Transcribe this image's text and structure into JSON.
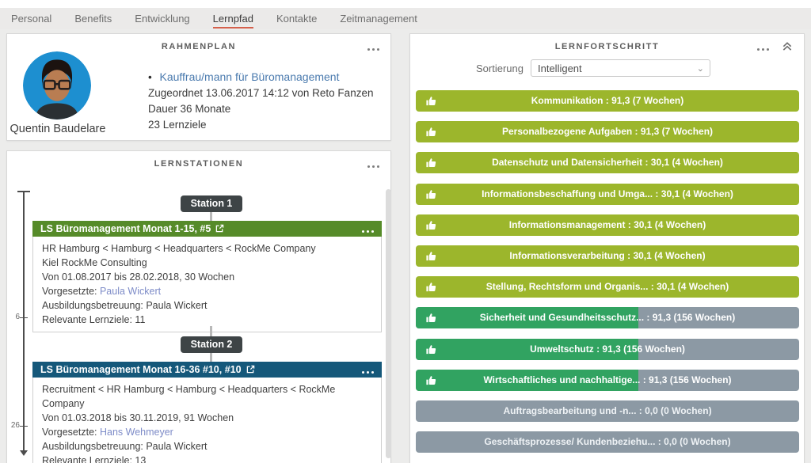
{
  "tabs": [
    {
      "label": "Personal",
      "active": false
    },
    {
      "label": "Benefits",
      "active": false
    },
    {
      "label": "Entwicklung",
      "active": false
    },
    {
      "label": "Lernpfad",
      "active": true
    },
    {
      "label": "Kontakte",
      "active": false
    },
    {
      "label": "Zeitmanagement",
      "active": false
    }
  ],
  "rahmenplan": {
    "title": "RAHMENPLAN",
    "person_name": "Quentin Baudelare",
    "bullet": "•",
    "plan_link": "Kauffrau/mann für Büromanagement",
    "assigned": "Zugeordnet 13.06.2017 14:12 von Reto Fanzen",
    "duration": "Dauer 36 Monate",
    "goals": "23 Lernziele"
  },
  "lernstationen": {
    "title": "LERNSTATIONEN",
    "axis_ticks": [
      "6",
      "26"
    ],
    "stations": [
      {
        "badge": "Station 1",
        "variant": "green",
        "title": "LS Büromanagement Monat 1-15, #5",
        "rows": [
          {
            "text": "HR Hamburg < Hamburg < Headquarters < RockMe Company"
          },
          {
            "text": "Kiel RockMe Consulting"
          },
          {
            "text": "Von 01.08.2017 bis 28.02.2018, 30 Wochen"
          },
          {
            "label": "Vorgesetzte: ",
            "link": "Paula Wickert"
          },
          {
            "text": "Ausbildungsbetreuung: Paula Wickert"
          },
          {
            "text": "Relevante Lernziele: 11"
          }
        ]
      },
      {
        "badge": "Station 2",
        "variant": "teal",
        "title": "LS Büromanagement Monat 16-36 #10, #10",
        "rows": [
          {
            "text": "Recruitment < HR Hamburg < Hamburg < Headquarters < RockMe Company"
          },
          {
            "text": "Von 01.03.2018 bis 30.11.2019, 91 Wochen"
          },
          {
            "label": "Vorgesetzte: ",
            "link": "Hans Wehmeyer"
          },
          {
            "text": "Ausbildungsbetreuung: Paula Wickert"
          },
          {
            "text": "Relevante Lernziele: 13"
          }
        ]
      }
    ]
  },
  "lernfortschritt": {
    "title": "LERNFORTSCHRITT",
    "sort_label": "Sortierung",
    "sort_value": "Intelligent",
    "bars": [
      {
        "text": "Kommunikation : 91,3 (7 Wochen)",
        "fill_pct": 100,
        "variant": "lime",
        "thumb": true
      },
      {
        "text": "Personalbezogene Aufgaben : 91,3 (7 Wochen)",
        "fill_pct": 100,
        "variant": "lime",
        "thumb": true
      },
      {
        "text": "Datenschutz und Datensicherheit : 30,1 (4 Wochen)",
        "fill_pct": 100,
        "variant": "lime",
        "thumb": true
      },
      {
        "text": "Informationsbeschaffung und Umga... : 30,1 (4 Wochen)",
        "fill_pct": 100,
        "variant": "lime",
        "thumb": true
      },
      {
        "text": "Informationsmanagement : 30,1 (4 Wochen)",
        "fill_pct": 100,
        "variant": "lime",
        "thumb": true
      },
      {
        "text": "Informationsverarbeitung : 30,1 (4 Wochen)",
        "fill_pct": 100,
        "variant": "lime",
        "thumb": true
      },
      {
        "text": "Stellung, Rechtsform und Organis... : 30,1 (4 Wochen)",
        "fill_pct": 100,
        "variant": "lime",
        "thumb": true
      },
      {
        "text": "Sicherheit und Gesundheitsschutz... : 91,3 (156 Wochen)",
        "fill_pct": 58,
        "variant": "split",
        "thumb": true
      },
      {
        "text": "Umweltschutz : 91,3 (156 Wochen)",
        "fill_pct": 58,
        "variant": "split",
        "thumb": true
      },
      {
        "text": "Wirtschaftliches und nachhaltige... : 91,3 (156 Wochen)",
        "fill_pct": 58,
        "variant": "split",
        "thumb": true
      },
      {
        "text": "Auftragsbearbeitung und -n... : 0,0 (0 Wochen)",
        "fill_pct": 0,
        "variant": "empty",
        "thumb": false
      },
      {
        "text": "Geschäftsprozesse/ Kundenbeziehu... : 0,0 (0 Wochen)",
        "fill_pct": 0,
        "variant": "empty",
        "thumb": false
      }
    ]
  },
  "colors": {
    "tab_underline": "#d5604b",
    "bar_lime": "#9cb62c",
    "bar_green": "#31a361",
    "bar_gray": "#8c99a4",
    "station_green": "#568b29",
    "station_teal": "#15587a",
    "badge_dark": "#3e4446",
    "link_blue": "#4a7aae",
    "link_periwinkle": "#7e8cc8"
  },
  "icons": {
    "overflow": "ellipsis-icon",
    "collapse": "chevron-double-up-icon",
    "external": "external-link-icon",
    "thumb": "thumbs-up-icon",
    "select": "chevron-down-icon"
  }
}
